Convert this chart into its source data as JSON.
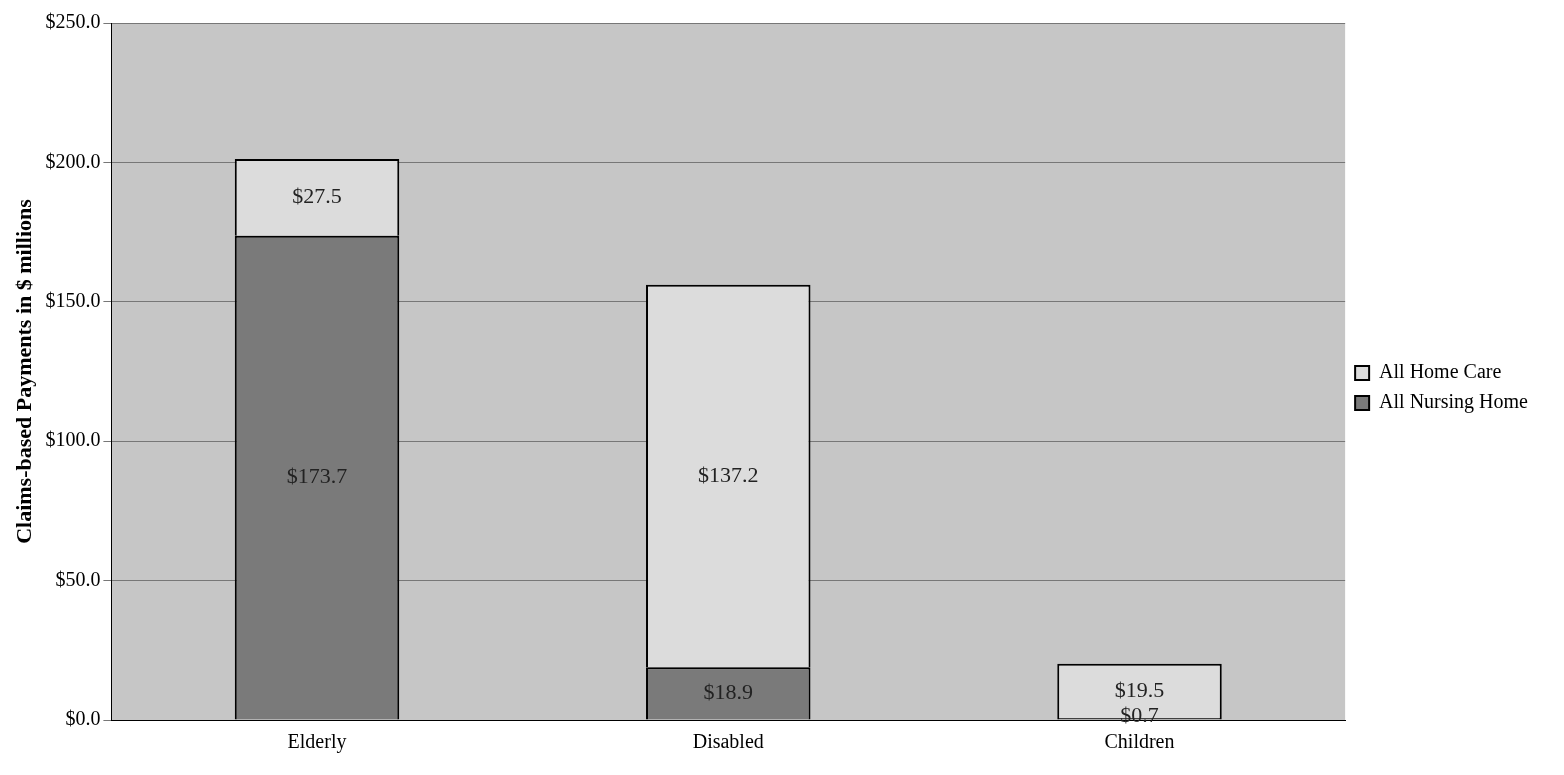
{
  "chart_data": {
    "type": "bar",
    "stacked": true,
    "ylabel": "Claims-based Payments in $ millions",
    "categories": [
      "Elderly",
      "Disabled",
      "Children"
    ],
    "series": [
      {
        "name": "All Nursing Home",
        "color": "#7a7a7a",
        "values": [
          173.7,
          18.9,
          0.7
        ],
        "value_labels": [
          "$173.7",
          "$18.9",
          "$0.7"
        ]
      },
      {
        "name": "All Home Care",
        "color": "#dcdcdc",
        "values": [
          27.5,
          137.2,
          19.5
        ],
        "value_labels": [
          "$27.5",
          "$137.2",
          "$19.5"
        ]
      }
    ],
    "ylim": [
      0,
      250
    ],
    "yticks": [
      {
        "value": 0,
        "label": "$0.0"
      },
      {
        "value": 50,
        "label": "$50.0"
      },
      {
        "value": 100,
        "label": "$100.0"
      },
      {
        "value": 150,
        "label": "$150.0"
      },
      {
        "value": 200,
        "label": "$200.0"
      },
      {
        "value": 250,
        "label": "$250.0"
      }
    ],
    "grid": "y",
    "legend": "right"
  }
}
